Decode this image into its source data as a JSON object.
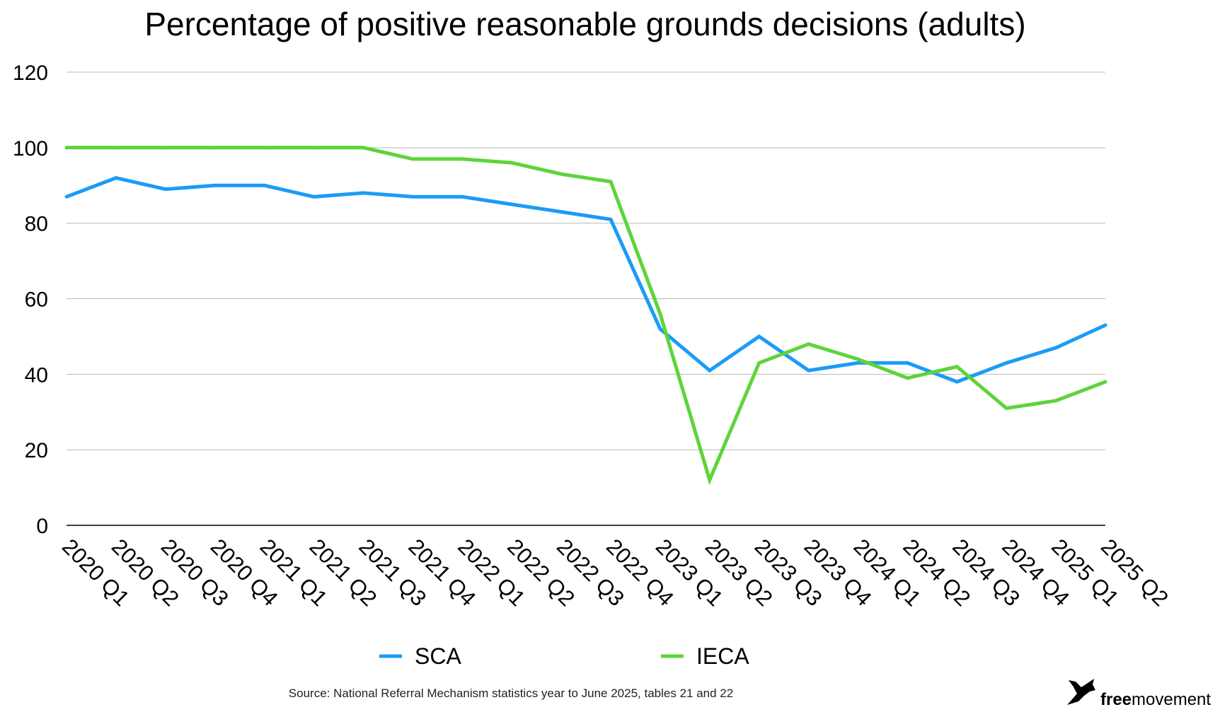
{
  "chart_data": {
    "type": "line",
    "title": "Percentage of positive reasonable grounds decisions (adults)",
    "xlabel": "",
    "ylabel": "",
    "ylim": [
      0,
      120
    ],
    "yticks": [
      0,
      20,
      40,
      60,
      80,
      100,
      120
    ],
    "grid": true,
    "legend_position": "bottom",
    "categories": [
      "2020 Q1",
      "2020 Q2",
      "2020 Q3",
      "2020 Q4",
      "2021 Q1",
      "2021 Q2",
      "2021 Q3",
      "2021 Q4",
      "2022 Q1",
      "2022 Q2",
      "2022 Q3",
      "2022 Q4",
      "2023 Q1",
      "2023 Q2",
      "2023 Q3",
      "2023 Q4",
      "2024 Q1",
      "2024 Q2",
      "2024 Q3",
      "2024 Q4",
      "2025 Q1",
      "2025 Q2"
    ],
    "series": [
      {
        "name": "SCA",
        "color": "#1a9cf5",
        "values": [
          87,
          92,
          89,
          90,
          90,
          87,
          88,
          87,
          87,
          85,
          83,
          81,
          52,
          41,
          50,
          41,
          43,
          43,
          38,
          43,
          47,
          53
        ]
      },
      {
        "name": "IECA",
        "color": "#5ed43a",
        "values": [
          100,
          100,
          100,
          100,
          100,
          100,
          100,
          97,
          97,
          96,
          93,
          91,
          56,
          12,
          43,
          48,
          44,
          39,
          42,
          31,
          33,
          38
        ]
      }
    ]
  },
  "footer": {
    "source": "Source: National Referral Mechanism statistics year to June 2025, tables 21 and 22"
  },
  "logo": {
    "icon": "bird-icon",
    "text_bold": "free",
    "text_regular": "movement"
  }
}
